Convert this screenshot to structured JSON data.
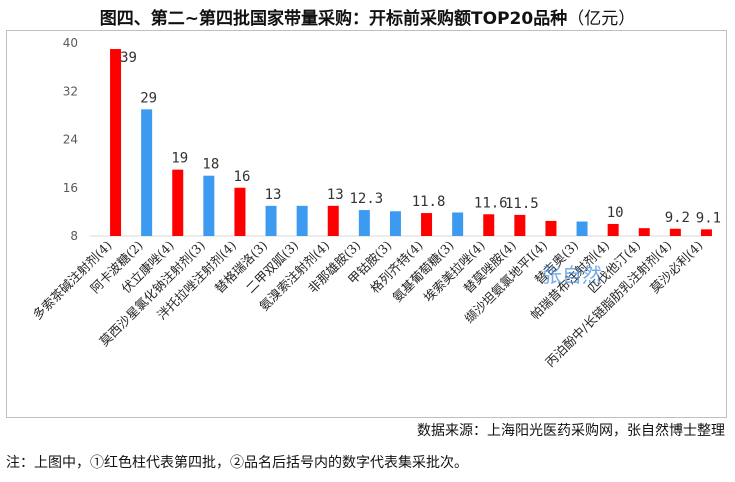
{
  "chart_data": {
    "type": "bar",
    "title": "图四、第二~第四批国家带量采购：开标前采购额TOP20品种",
    "unit": "（亿元）",
    "xlabel": "",
    "ylabel": "",
    "ylim": [
      8,
      40
    ],
    "yticks": [
      8,
      16,
      24,
      32,
      40
    ],
    "grid": false,
    "categories": [
      "多索茶碱注射剂(4)",
      "阿卡波糖(2)",
      "伏立康唑(4)",
      "莫西沙星氯化钠注射剂(3)",
      "泮托拉唑注射剂(4)",
      "替格瑞洛(3)",
      "二甲双胍(3)",
      "氨溴索注射剂(4)",
      "非那雄胺(3)",
      "甲钴胺(3)",
      "格列齐特(4)",
      "氨基葡萄糖(3)",
      "埃索美拉唑(4)",
      "替莫唑胺(4)",
      "缬沙坦氨氯地平Ⅰ(4)",
      "替吉奥(3)",
      "帕瑞昔布注射剂(4)",
      "匹伐他汀(4)",
      "丙泊酚中/长链脂肪乳注射剂(4)",
      "莫沙必利(4)"
    ],
    "values": [
      39,
      29,
      19,
      18,
      16,
      13,
      13,
      13,
      12.3,
      12.1,
      11.8,
      11.9,
      11.6,
      11.5,
      10.5,
      10.4,
      10,
      9.3,
      9.2,
      9.1
    ],
    "value_labels": [
      "39",
      "29",
      "19",
      "18",
      "16",
      "13",
      "",
      "13",
      "12.3",
      "",
      "11.8",
      "",
      "11.6",
      "11.5",
      "",
      "",
      "10",
      "",
      "9.2",
      "9.1"
    ],
    "batch": [
      4,
      2,
      4,
      3,
      4,
      3,
      3,
      4,
      3,
      3,
      4,
      3,
      4,
      4,
      4,
      3,
      4,
      4,
      4,
      4
    ],
    "series_colors": {
      "batch4": "#ff0000",
      "other": "#3c9bf0"
    },
    "watermark": "张自然"
  },
  "source_text": "数据来源：上海阳光医药采购网，张自然博士整理",
  "note_text": "注：上图中，①红色柱代表第四批，②品名后括号内的数字代表集采批次。"
}
